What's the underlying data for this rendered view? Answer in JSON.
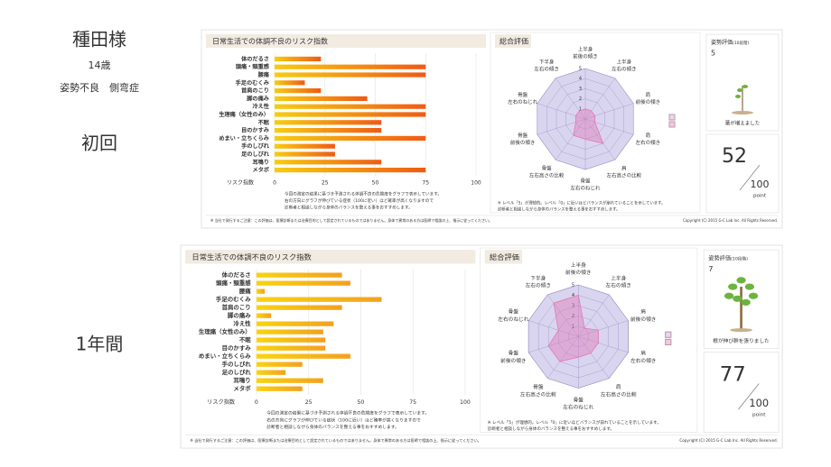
{
  "patient": {
    "name": "種田様",
    "age": "14歳",
    "condition": "姿勢不良　側弯症"
  },
  "chart_data": [
    {
      "type": "bar",
      "title": "日常生活での体調不良のリスク指数",
      "xlabel": "リスク指数",
      "categories": [
        "体のだるさ",
        "頭痛・頸重感",
        "腰痛",
        "手足のむくみ",
        "首肩のこり",
        "脚の痛み",
        "冷え性",
        "生理痛（女性のみ）",
        "不眠",
        "目のかすみ",
        "めまい・立ちくらみ",
        "手のしびれ",
        "足のしびれ",
        "耳鳴り",
        "メタボ"
      ],
      "values": [
        23,
        75,
        75,
        15,
        23,
        46,
        75,
        75,
        53,
        53,
        75,
        30,
        30,
        53,
        75
      ],
      "xlim": [
        0,
        100
      ],
      "xticks": [
        0,
        25,
        50,
        75,
        100
      ],
      "grid": true,
      "color": "#f8cc10",
      "color2": "#f05a14"
    },
    {
      "type": "radar",
      "title": "総合評価",
      "axes": [
        [
          "上半身",
          "前後の傾き"
        ],
        [
          "上半身",
          "左右の傾き"
        ],
        [
          "肩",
          "前後の傾き"
        ],
        [
          "肩",
          "左右の傾き"
        ],
        [
          "肩",
          "左右高さの比較"
        ],
        [
          "骨盤",
          "左右のねじれ"
        ],
        [
          "骨盤",
          "左右高さの比較"
        ],
        [
          "骨盤",
          "前後の傾き"
        ],
        [
          "骨盤",
          "左右のねじれ"
        ],
        [
          "下半身",
          "左右の傾き"
        ]
      ],
      "values": [
        1,
        1,
        1,
        1,
        3,
        2,
        2,
        1,
        1,
        1
      ],
      "rlim": [
        0,
        5
      ],
      "rticks": [
        1,
        2,
        3,
        4,
        5
      ],
      "color": "#e07ab8",
      "grid_color": "#d9d5ef"
    },
    {
      "type": "bar",
      "title": "日常生活での体調不良のリスク指数",
      "xlabel": "リスク指数",
      "categories": [
        "体のだるさ",
        "頭痛・頸重感",
        "腰痛",
        "手足のむくみ",
        "首肩のこり",
        "脚の痛み",
        "冷え性",
        "生理痛（女性のみ）",
        "不眠",
        "目のかすみ",
        "めまい・立ちくらみ",
        "手のしびれ",
        "足のしびれ",
        "耳鳴り",
        "メタボ"
      ],
      "values": [
        41,
        45,
        4,
        60,
        41,
        7,
        37,
        32,
        33,
        33,
        45,
        22,
        14,
        32,
        22
      ],
      "xlim": [
        0,
        100
      ],
      "xticks": [
        0,
        25,
        50,
        75,
        100
      ],
      "grid": true,
      "color": "#f8d410",
      "color2": "#f3a020"
    },
    {
      "type": "radar",
      "title": "総合評価",
      "axes": [
        [
          "上半身",
          "前後の傾き"
        ],
        [
          "上半身",
          "左右の傾き"
        ],
        [
          "肩",
          "前後の傾き"
        ],
        [
          "肩",
          "左右の傾き"
        ],
        [
          "肩",
          "左右高さの比較"
        ],
        [
          "骨盤",
          "左右のねじれ"
        ],
        [
          "骨盤",
          "左右高さの比較"
        ],
        [
          "骨盤",
          "前後の傾き"
        ],
        [
          "骨盤",
          "左右のねじれ"
        ],
        [
          "下半身",
          "左右の傾き"
        ]
      ],
      "values": [
        4,
        1,
        2,
        2,
        2,
        2,
        3,
        3,
        2,
        4
      ],
      "rlim": [
        0,
        5
      ],
      "rticks": [
        1,
        2,
        3,
        4,
        5
      ],
      "color": "#e07ab8",
      "grid_color": "#d9d5ef"
    }
  ],
  "reports": [
    {
      "label": "初回",
      "score_title": "姿勢評価",
      "score_scale": "(10段階)",
      "score_level": "5",
      "message": "葉が増えました",
      "points": 52,
      "max": "100",
      "unit": "point",
      "notes": [
        "今回の測定の結果に基づき予測される体調不良の危険度をグラフで表示しています。",
        "右の方向にグラフが伸びている症状（100に近い）ほど確率が高くなりますので",
        "診断者と相談しながら身体のバランスを整える事をおすすめします。"
      ],
      "radar_notes": [
        "※ レベル「5」が理想的。レベル「0」に近いほどバランスが崩れていることを示しています。",
        "診断者と相談しながら身体のバランスを整える事をおすすめします。"
      ],
      "disclaimer": "※ 当社で発行するご注意：この評価は、医療診断または治療目的として設定されているものではありません。身体で異常のある方は医師で相談の上、指示に従ってください。",
      "copyright": "Copyright (C) 2015 G-C Lab Inc. All Rights Reserved."
    },
    {
      "label": "1年間",
      "score_title": "姿勢評価",
      "score_scale": "(10段階)",
      "score_level": "7",
      "message": "根が伸び幹を張りました",
      "points": 77,
      "max": "100",
      "unit": "point",
      "notes": [
        "今回の測定の結果に基づき予測される体調不良の危険度をグラフで表示しています。",
        "右の方向にグラフが伸びている症状（100に近い）ほど確率が高くなりますので",
        "診断者と相談しながら身体のバランスを整える事をおすすめします。"
      ],
      "radar_notes": [
        "※ レベル「5」が理想的。レベル「0」に近いほどバランスが崩れていることを示しています。",
        "診断者と相談しながら身体のバランスを整える事をおすすめします。"
      ],
      "disclaimer": "※ 当社で発行するご注意：この評価は、医療診断または治療目的として設定されているものではありません。身体で異常のある方は医師で相談の上、指示に従ってください。",
      "copyright": "Copyright (C) 2015 G-C Lab Inc. All Rights Reserved."
    }
  ]
}
